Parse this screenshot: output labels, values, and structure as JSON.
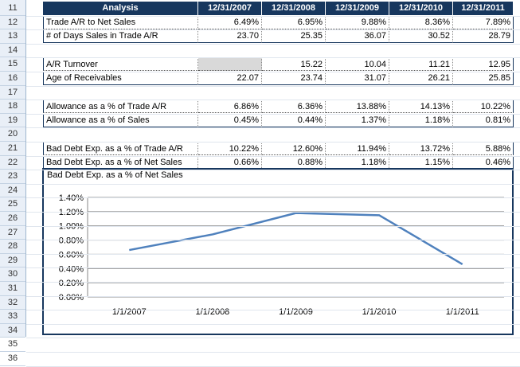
{
  "row_numbers": [
    "11",
    "12",
    "13",
    "14",
    "15",
    "16",
    "17",
    "18",
    "19",
    "20",
    "21",
    "22",
    "23",
    "24",
    "25",
    "26",
    "27",
    "28",
    "29",
    "30",
    "31",
    "32",
    "33",
    "34",
    "35",
    "36"
  ],
  "header": {
    "label": "Analysis",
    "dates": [
      "12/31/2007",
      "12/31/2008",
      "12/31/2009",
      "12/31/2010",
      "12/31/2011"
    ]
  },
  "block1": [
    {
      "label": "Trade A/R to Net Sales",
      "values": [
        "6.49%",
        "6.95%",
        "9.88%",
        "8.36%",
        "7.89%"
      ]
    },
    {
      "label": "# of Days Sales in Trade A/R",
      "values": [
        "23.70",
        "25.35",
        "36.07",
        "30.52",
        "28.79"
      ]
    }
  ],
  "block2": [
    {
      "label": "A/R Turnover",
      "values": [
        "",
        "15.22",
        "10.04",
        "11.21",
        "12.95"
      ]
    },
    {
      "label": "Age of Receivables",
      "values": [
        "22.07",
        "23.74",
        "31.07",
        "26.21",
        "25.85"
      ]
    }
  ],
  "block3": [
    {
      "label": "Allowance as a % of Trade A/R",
      "values": [
        "6.86%",
        "6.36%",
        "13.88%",
        "14.13%",
        "10.22%"
      ]
    },
    {
      "label": "Allowance as a % of Sales",
      "values": [
        "0.45%",
        "0.44%",
        "1.37%",
        "1.18%",
        "0.81%"
      ]
    }
  ],
  "block4": [
    {
      "label": "Bad Debt Exp. as a % of Trade A/R",
      "values": [
        "10.22%",
        "12.60%",
        "11.94%",
        "13.72%",
        "5.88%"
      ]
    },
    {
      "label": "Bad Debt Exp. as a % of Net Sales",
      "values": [
        "0.66%",
        "0.88%",
        "1.18%",
        "1.15%",
        "0.46%"
      ]
    }
  ],
  "colors": {
    "header_bg": "#17375e",
    "line": "#4f81bd",
    "grid": "#878787"
  },
  "chart_data": {
    "type": "line",
    "title": "Bad Debt Exp. as a % of Net Sales",
    "categories": [
      "1/1/2007",
      "1/1/2008",
      "1/1/2009",
      "1/1/2010",
      "1/1/2011"
    ],
    "values": [
      0.66,
      0.88,
      1.18,
      1.15,
      0.46
    ],
    "y_tick_labels": [
      "0.00%",
      "0.20%",
      "0.40%",
      "0.60%",
      "0.80%",
      "1.00%",
      "1.20%",
      "1.40%"
    ],
    "ylim": [
      0,
      1.4
    ],
    "grid": true,
    "legend": "none"
  }
}
